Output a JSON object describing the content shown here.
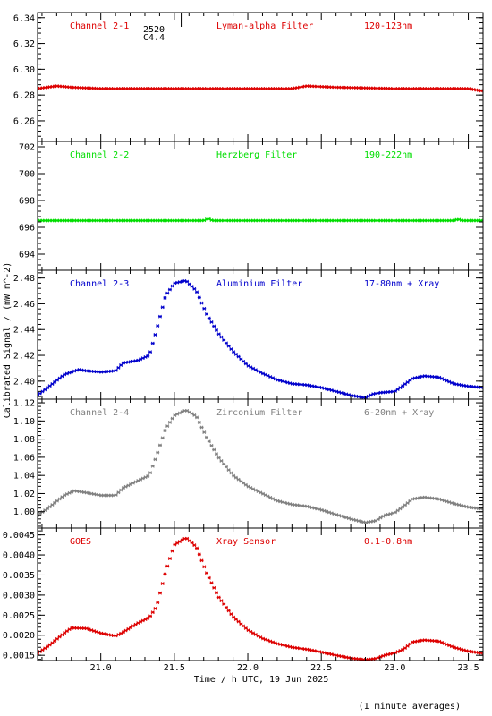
{
  "chart_data": {
    "type": "scatter",
    "xlabel": "Time / h UTC, 19 Jun 2025",
    "ylabel": "Calibrated Signal / (mW m^-2)",
    "footnote": "(1 minute averages)",
    "xlim": [
      20.57,
      23.6
    ],
    "xticks": [
      "21.0",
      "21.5",
      "22.0",
      "22.5",
      "23.0",
      "23.5"
    ],
    "flare_marker": {
      "x": 21.55,
      "label_top": "2520",
      "label_bottom": "C4.4",
      "color": "#000000"
    },
    "panels": [
      {
        "channel": "Channel 2-1",
        "filter": "Lyman-alpha Filter",
        "band": "120-123nm",
        "color": "#dd0000",
        "ylim": [
          6.244,
          6.344
        ],
        "yticks": [
          "6.26",
          "6.28",
          "6.30",
          "6.32",
          "6.34"
        ],
        "keypoints": [
          [
            20.57,
            6.285
          ],
          [
            20.7,
            6.287
          ],
          [
            20.8,
            6.286
          ],
          [
            21.0,
            6.285
          ],
          [
            21.5,
            6.285
          ],
          [
            22.0,
            6.285
          ],
          [
            22.3,
            6.285
          ],
          [
            22.4,
            6.287
          ],
          [
            22.6,
            6.286
          ],
          [
            23.0,
            6.285
          ],
          [
            23.4,
            6.285
          ],
          [
            23.5,
            6.285
          ],
          [
            23.6,
            6.283
          ]
        ]
      },
      {
        "channel": "Channel 2-2",
        "filter": "Herzberg Filter",
        "band": "190-222nm",
        "color": "#00dd00",
        "ylim": [
          692.8,
          702.4
        ],
        "yticks": [
          "694",
          "696",
          "698",
          "700",
          "702"
        ],
        "keypoints": [
          [
            20.57,
            696.5
          ],
          [
            21.7,
            696.5
          ],
          [
            21.73,
            696.65
          ],
          [
            21.76,
            696.5
          ],
          [
            23.4,
            696.5
          ],
          [
            23.43,
            696.6
          ],
          [
            23.46,
            696.5
          ],
          [
            23.6,
            696.5
          ]
        ]
      },
      {
        "channel": "Channel 2-3",
        "filter": "Aluminium Filter",
        "band": "17-80nm + Xray",
        "color": "#0000cc",
        "ylim": [
          2.386,
          2.486
        ],
        "yticks": [
          "2.40",
          "2.42",
          "2.44",
          "2.46",
          "2.48"
        ],
        "keypoints": [
          [
            20.57,
            2.389
          ],
          [
            20.65,
            2.396
          ],
          [
            20.75,
            2.405
          ],
          [
            20.85,
            2.409
          ],
          [
            20.9,
            2.408
          ],
          [
            21.0,
            2.407
          ],
          [
            21.1,
            2.408
          ],
          [
            21.15,
            2.414
          ],
          [
            21.25,
            2.416
          ],
          [
            21.33,
            2.42
          ],
          [
            21.38,
            2.44
          ],
          [
            21.44,
            2.466
          ],
          [
            21.5,
            2.476
          ],
          [
            21.58,
            2.478
          ],
          [
            21.65,
            2.47
          ],
          [
            21.72,
            2.452
          ],
          [
            21.8,
            2.437
          ],
          [
            21.9,
            2.423
          ],
          [
            22.0,
            2.412
          ],
          [
            22.1,
            2.406
          ],
          [
            22.2,
            2.401
          ],
          [
            22.3,
            2.398
          ],
          [
            22.4,
            2.397
          ],
          [
            22.5,
            2.395
          ],
          [
            22.6,
            2.392
          ],
          [
            22.7,
            2.389
          ],
          [
            22.8,
            2.387
          ],
          [
            22.85,
            2.39
          ],
          [
            22.9,
            2.391
          ],
          [
            23.0,
            2.392
          ],
          [
            23.05,
            2.396
          ],
          [
            23.12,
            2.402
          ],
          [
            23.2,
            2.404
          ],
          [
            23.3,
            2.403
          ],
          [
            23.4,
            2.398
          ],
          [
            23.5,
            2.396
          ],
          [
            23.6,
            2.395
          ]
        ]
      },
      {
        "channel": "Channel 2-4",
        "filter": "Zirconium Filter",
        "band": "6-20nm + Xray",
        "color": "#808080",
        "ylim": [
          0.982,
          1.124
        ],
        "yticks": [
          "1.00",
          "1.02",
          "1.04",
          "1.06",
          "1.08",
          "1.10",
          "1.12"
        ],
        "keypoints": [
          [
            20.57,
            0.996
          ],
          [
            20.65,
            1.005
          ],
          [
            20.75,
            1.018
          ],
          [
            20.82,
            1.023
          ],
          [
            20.9,
            1.021
          ],
          [
            21.0,
            1.018
          ],
          [
            21.1,
            1.018
          ],
          [
            21.15,
            1.026
          ],
          [
            21.25,
            1.034
          ],
          [
            21.33,
            1.04
          ],
          [
            21.38,
            1.062
          ],
          [
            21.44,
            1.091
          ],
          [
            21.5,
            1.106
          ],
          [
            21.58,
            1.112
          ],
          [
            21.65,
            1.105
          ],
          [
            21.72,
            1.082
          ],
          [
            21.8,
            1.06
          ],
          [
            21.9,
            1.04
          ],
          [
            22.0,
            1.028
          ],
          [
            22.1,
            1.02
          ],
          [
            22.2,
            1.012
          ],
          [
            22.3,
            1.008
          ],
          [
            22.4,
            1.006
          ],
          [
            22.5,
            1.002
          ],
          [
            22.6,
            0.997
          ],
          [
            22.7,
            0.992
          ],
          [
            22.8,
            0.988
          ],
          [
            22.87,
            0.99
          ],
          [
            22.93,
            0.996
          ],
          [
            23.0,
            0.999
          ],
          [
            23.06,
            1.006
          ],
          [
            23.12,
            1.014
          ],
          [
            23.2,
            1.016
          ],
          [
            23.3,
            1.014
          ],
          [
            23.4,
            1.009
          ],
          [
            23.5,
            1.005
          ],
          [
            23.6,
            1.003
          ]
        ]
      },
      {
        "channel": "GOES",
        "filter": "Xray Sensor",
        "band": "0.1-0.8nm",
        "color": "#dd0000",
        "ylim": [
          0.00137,
          0.00467
        ],
        "yticks": [
          "0.0015",
          "0.0020",
          "0.0025",
          "0.0030",
          "0.0035",
          "0.0040",
          "0.0045"
        ],
        "keypoints": [
          [
            20.57,
            0.00155
          ],
          [
            20.65,
            0.00175
          ],
          [
            20.75,
            0.00205
          ],
          [
            20.8,
            0.00218
          ],
          [
            20.9,
            0.00217
          ],
          [
            21.0,
            0.00205
          ],
          [
            21.1,
            0.00198
          ],
          [
            21.15,
            0.00207
          ],
          [
            21.25,
            0.0023
          ],
          [
            21.33,
            0.00244
          ],
          [
            21.38,
            0.00272
          ],
          [
            21.44,
            0.00357
          ],
          [
            21.5,
            0.00425
          ],
          [
            21.58,
            0.00443
          ],
          [
            21.65,
            0.0042
          ],
          [
            21.72,
            0.00355
          ],
          [
            21.8,
            0.00296
          ],
          [
            21.9,
            0.00246
          ],
          [
            22.0,
            0.00213
          ],
          [
            22.1,
            0.00192
          ],
          [
            22.2,
            0.00179
          ],
          [
            22.3,
            0.0017
          ],
          [
            22.4,
            0.00165
          ],
          [
            22.5,
            0.00158
          ],
          [
            22.6,
            0.0015
          ],
          [
            22.7,
            0.00143
          ],
          [
            22.8,
            0.00139
          ],
          [
            22.87,
            0.00142
          ],
          [
            22.93,
            0.0015
          ],
          [
            23.0,
            0.00156
          ],
          [
            23.06,
            0.00165
          ],
          [
            23.12,
            0.00183
          ],
          [
            23.2,
            0.00188
          ],
          [
            23.3,
            0.00185
          ],
          [
            23.4,
            0.0017
          ],
          [
            23.5,
            0.0016
          ],
          [
            23.6,
            0.00155
          ]
        ]
      }
    ]
  }
}
